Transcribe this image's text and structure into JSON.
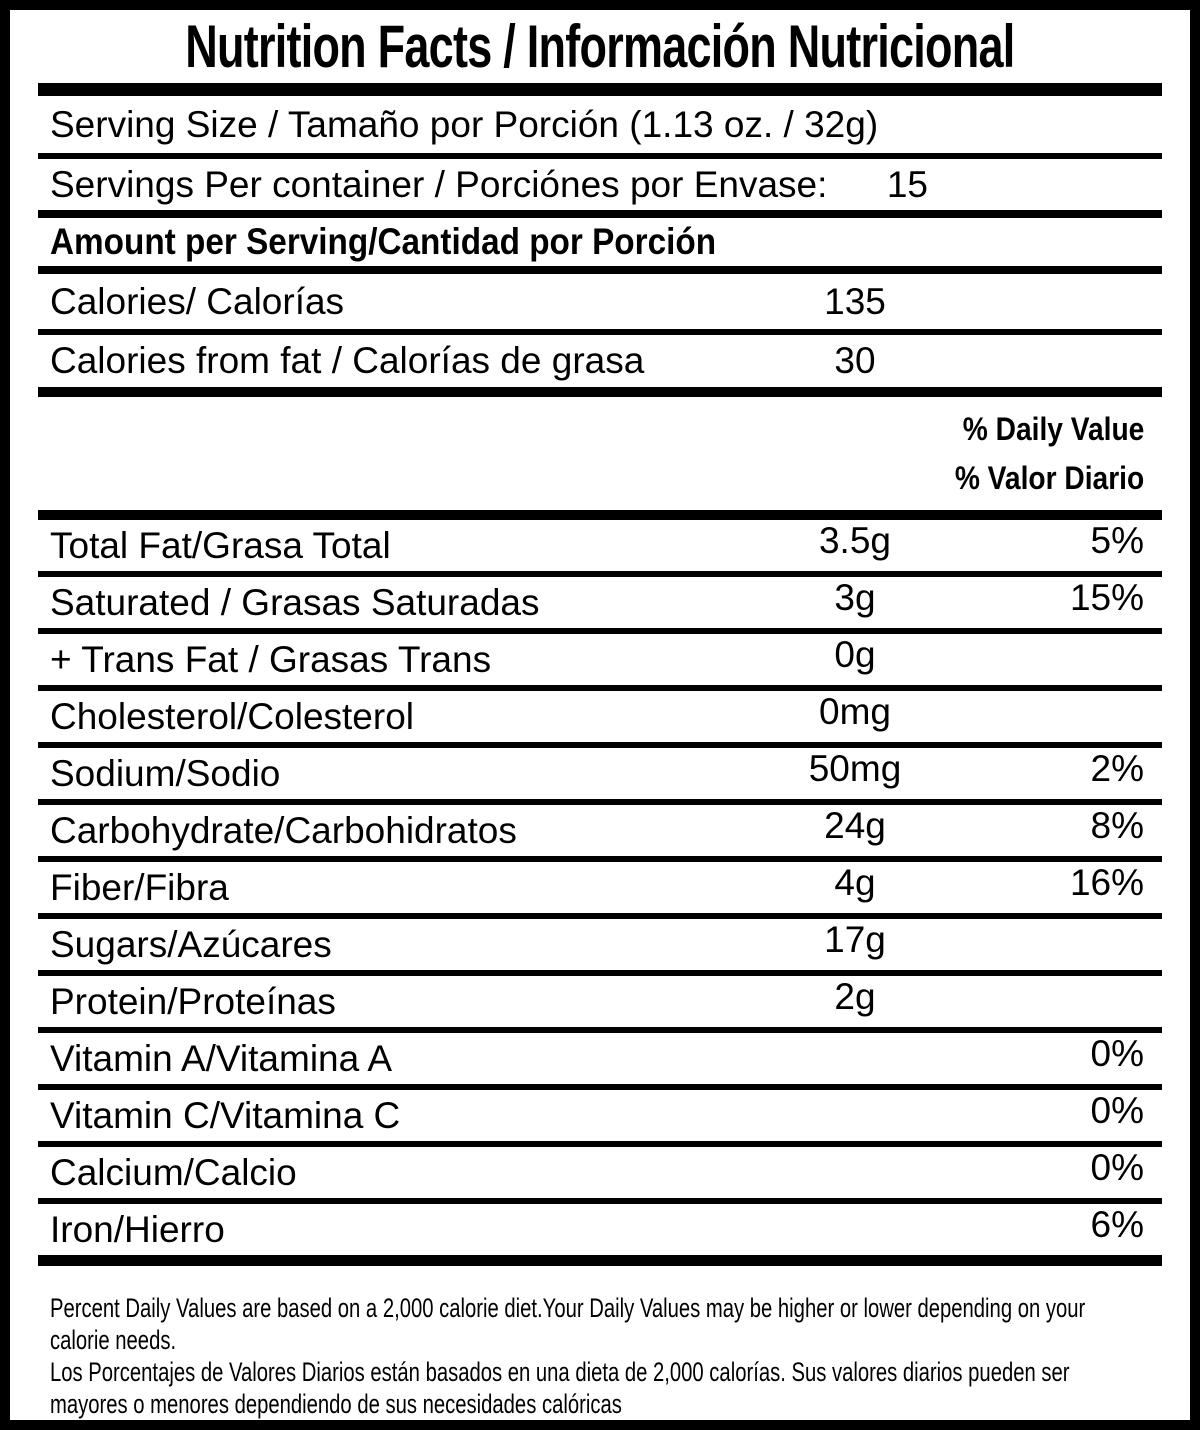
{
  "title": "Nutrition Facts / Información Nutricional",
  "serving": {
    "serving_size": "Serving Size / Tamaño por Porción (1.13 oz. / 32g)",
    "servings_per_container_label": "Servings Per container / Porciónes por Envase:",
    "servings_per_container_value": "15"
  },
  "amount_per_serving_header": "Amount per Serving/Cantidad por Porción",
  "calories": {
    "label": "Calories/ Calorías",
    "value": "135"
  },
  "calories_from_fat": {
    "label": "Calories from fat / Calorías de grasa",
    "value": "30"
  },
  "daily_value_header": {
    "line1": "% Daily Value",
    "line2": "% Valor Diario"
  },
  "nutrients": [
    {
      "label": "Total Fat/Grasa Total",
      "amount": "3.5g",
      "dv": "5%"
    },
    {
      "label": "Saturated / Grasas Saturadas",
      "amount": "3g",
      "dv": "15%"
    },
    {
      "label": "+ Trans Fat / Grasas Trans",
      "amount": "0g",
      "dv": ""
    },
    {
      "label": "Cholesterol/Colesterol",
      "amount": "0mg",
      "dv": ""
    },
    {
      "label": "Sodium/Sodio",
      "amount": "50mg",
      "dv": "2%"
    },
    {
      "label": "Carbohydrate/Carbohidratos",
      "amount": "24g",
      "dv": "8%"
    },
    {
      "label": "Fiber/Fibra",
      "amount": "4g",
      "dv": "16%"
    },
    {
      "label": "Sugars/Azúcares",
      "amount": "17g",
      "dv": ""
    },
    {
      "label": "Protein/Proteínas",
      "amount": "2g",
      "dv": ""
    },
    {
      "label": "Vitamin A/Vitamina A",
      "amount": "",
      "dv": "0%"
    },
    {
      "label": "Vitamin C/Vitamina C",
      "amount": "",
      "dv": "0%"
    },
    {
      "label": "Calcium/Calcio",
      "amount": "",
      "dv": "0%"
    },
    {
      "label": "Iron/Hierro",
      "amount": "",
      "dv": "6%"
    }
  ],
  "footnote_lines": [
    "Percent Daily Values are based on a 2,000 calorie diet.Your Daily Values may be higher or lower depending on your",
    "calorie needs.",
    "Los Porcentajes de Valores Diarios están basados en una dieta de 2,000 calorías. Sus valores diarios pueden ser",
    "mayores o menores dependiendo de sus necesidades calóricas"
  ],
  "colors": {
    "text": "#000000",
    "background": "#ffffff",
    "border": "#000000"
  }
}
